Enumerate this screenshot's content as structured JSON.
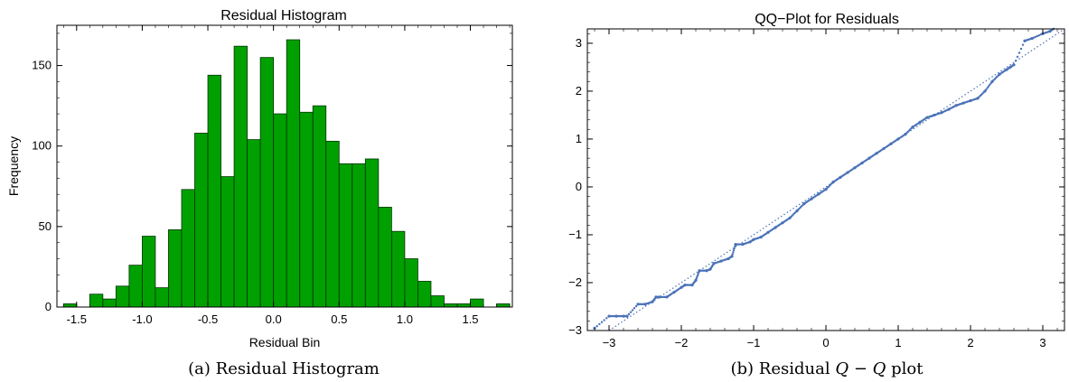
{
  "chart_data": [
    {
      "type": "bar",
      "title": "Residual Histogram",
      "xlabel": "Residual Bin",
      "ylabel": "Frequency",
      "caption": "(a) Residual Histogram",
      "bar_color": "#00a000",
      "bar_edge_color": "#003300",
      "bin_start": -1.6,
      "bin_width": 0.1,
      "values": [
        2,
        0,
        8,
        5,
        13,
        26,
        44,
        12,
        48,
        73,
        108,
        144,
        81,
        162,
        104,
        155,
        120,
        166,
        121,
        125,
        103,
        89,
        89,
        92,
        62,
        47,
        30,
        16,
        7,
        2,
        2,
        5,
        0,
        2
      ],
      "xlim": [
        -1.65,
        1.82
      ],
      "ylim": [
        0,
        175
      ],
      "xticks": [
        -1.5,
        -1.0,
        -0.5,
        0.0,
        0.5,
        1.0,
        1.5
      ],
      "xtick_labels": [
        "-1.5",
        "-1.0",
        "-0.5",
        "0.0",
        "0.5",
        "1.0",
        "1.5"
      ],
      "yticks": [
        0,
        50,
        100,
        150
      ],
      "ytick_labels": [
        "0",
        "50",
        "100",
        "150"
      ]
    },
    {
      "type": "scatter",
      "title": "QQ−Plot for Residuals",
      "caption_prefix": "(b) Residual ",
      "caption_math": "Q − Q",
      "caption_suffix": " plot",
      "point_color": "#4a72b8",
      "reference_line": {
        "x": [
          -3.3,
          3.3
        ],
        "y": [
          -3.3,
          3.3
        ],
        "style": "dotted"
      },
      "points": [
        [
          -3.2,
          -2.95
        ],
        [
          -3.0,
          -2.7
        ],
        [
          -2.9,
          -2.7
        ],
        [
          -2.8,
          -2.7
        ],
        [
          -2.75,
          -2.7
        ],
        [
          -2.6,
          -2.45
        ],
        [
          -2.5,
          -2.45
        ],
        [
          -2.4,
          -2.4
        ],
        [
          -2.35,
          -2.3
        ],
        [
          -2.3,
          -2.3
        ],
        [
          -2.2,
          -2.3
        ],
        [
          -2.1,
          -2.2
        ],
        [
          -2.0,
          -2.1
        ],
        [
          -1.95,
          -2.05
        ],
        [
          -1.85,
          -2.05
        ],
        [
          -1.8,
          -1.95
        ],
        [
          -1.75,
          -1.75
        ],
        [
          -1.65,
          -1.75
        ],
        [
          -1.6,
          -1.72
        ],
        [
          -1.55,
          -1.6
        ],
        [
          -1.45,
          -1.55
        ],
        [
          -1.35,
          -1.5
        ],
        [
          -1.3,
          -1.45
        ],
        [
          -1.25,
          -1.2
        ],
        [
          -1.15,
          -1.2
        ],
        [
          -1.05,
          -1.15
        ],
        [
          -1.0,
          -1.1
        ],
        [
          -0.9,
          -1.05
        ],
        [
          -0.8,
          -0.95
        ],
        [
          -0.7,
          -0.85
        ],
        [
          -0.6,
          -0.75
        ],
        [
          -0.5,
          -0.65
        ],
        [
          -0.4,
          -0.5
        ],
        [
          -0.3,
          -0.35
        ],
        [
          -0.2,
          -0.25
        ],
        [
          -0.1,
          -0.15
        ],
        [
          0.0,
          -0.05
        ],
        [
          0.1,
          0.1
        ],
        [
          0.2,
          0.2
        ],
        [
          0.3,
          0.3
        ],
        [
          0.4,
          0.4
        ],
        [
          0.5,
          0.5
        ],
        [
          0.6,
          0.6
        ],
        [
          0.7,
          0.7
        ],
        [
          0.8,
          0.8
        ],
        [
          0.9,
          0.9
        ],
        [
          1.0,
          1.0
        ],
        [
          1.1,
          1.1
        ],
        [
          1.2,
          1.25
        ],
        [
          1.3,
          1.35
        ],
        [
          1.4,
          1.45
        ],
        [
          1.5,
          1.5
        ],
        [
          1.6,
          1.55
        ],
        [
          1.7,
          1.62
        ],
        [
          1.8,
          1.7
        ],
        [
          1.9,
          1.75
        ],
        [
          2.0,
          1.8
        ],
        [
          2.1,
          1.85
        ],
        [
          2.2,
          2.0
        ],
        [
          2.3,
          2.2
        ],
        [
          2.4,
          2.35
        ],
        [
          2.5,
          2.45
        ],
        [
          2.55,
          2.5
        ],
        [
          2.6,
          2.55
        ],
        [
          2.75,
          3.05
        ],
        [
          2.85,
          3.1
        ],
        [
          3.0,
          3.2
        ],
        [
          3.1,
          3.25
        ],
        [
          3.2,
          3.35
        ]
      ],
      "xlim": [
        -3.3,
        3.3
      ],
      "ylim": [
        -3.0,
        3.3
      ],
      "xticks": [
        -3,
        -2,
        -1,
        0,
        1,
        2,
        3
      ],
      "xtick_labels": [
        "−3",
        "−2",
        "−1",
        "0",
        "1",
        "2",
        "3"
      ],
      "yticks": [
        -3,
        -2,
        -1,
        0,
        1,
        2,
        3
      ],
      "ytick_labels": [
        "−3",
        "−2",
        "−1",
        "0",
        "1",
        "2",
        "3"
      ]
    }
  ]
}
